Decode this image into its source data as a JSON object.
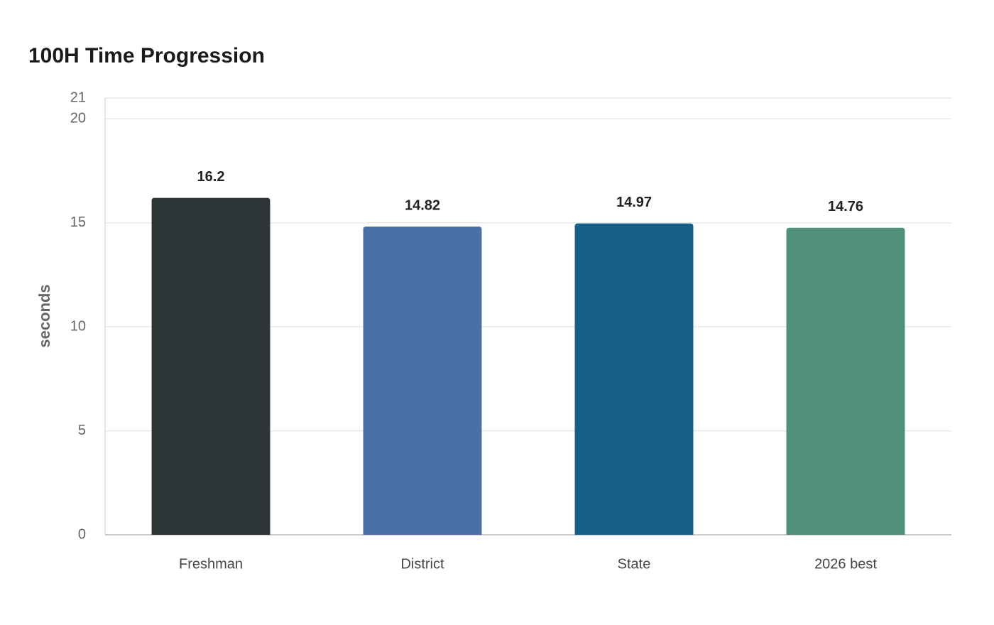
{
  "chart_data": {
    "type": "bar",
    "title": "100H Time Progression",
    "y_label": "seconds",
    "categories": [
      "Freshman",
      "District",
      "State",
      "2026 best"
    ],
    "values": [
      16.2,
      14.82,
      14.97,
      14.76
    ],
    "colors": [
      "#2d3436",
      "#4a6fa5",
      "#166088",
      "#4f8f7b"
    ],
    "ylim": [
      0,
      21
    ],
    "yticks": [
      0,
      5,
      10,
      15,
      20,
      21
    ],
    "grid": true
  }
}
